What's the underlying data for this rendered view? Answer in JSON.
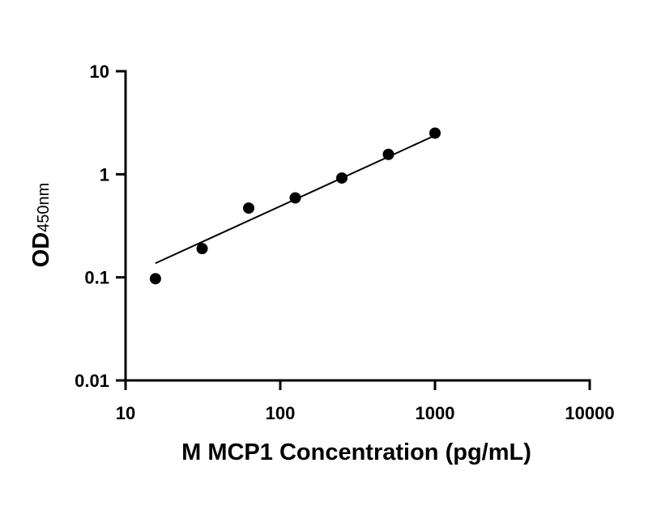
{
  "chart_data": {
    "type": "scatter",
    "title": "",
    "xlabel": "M MCP1 Concentration (pg/mL)",
    "ylabel": "OD",
    "ylabel_subscript": "450nm",
    "x_scale": "log",
    "y_scale": "log",
    "xlim": [
      10,
      10000
    ],
    "ylim": [
      0.01,
      10
    ],
    "x_ticks": [
      10,
      100,
      1000,
      10000
    ],
    "x_tick_labels": [
      "10",
      "100",
      "1000",
      "10000"
    ],
    "y_ticks": [
      0.01,
      0.1,
      1,
      10
    ],
    "y_tick_labels": [
      "0.01",
      "0.1",
      "1",
      "10"
    ],
    "grid": false,
    "series": [
      {
        "x": [
          15.6,
          31.25,
          62.5,
          125,
          250,
          500,
          1000
        ],
        "y": [
          0.097,
          0.19,
          0.47,
          0.59,
          0.92,
          1.56,
          2.51
        ]
      }
    ],
    "fit_line": {
      "x": [
        15.6,
        1000
      ],
      "y": [
        0.137,
        2.38
      ]
    }
  }
}
